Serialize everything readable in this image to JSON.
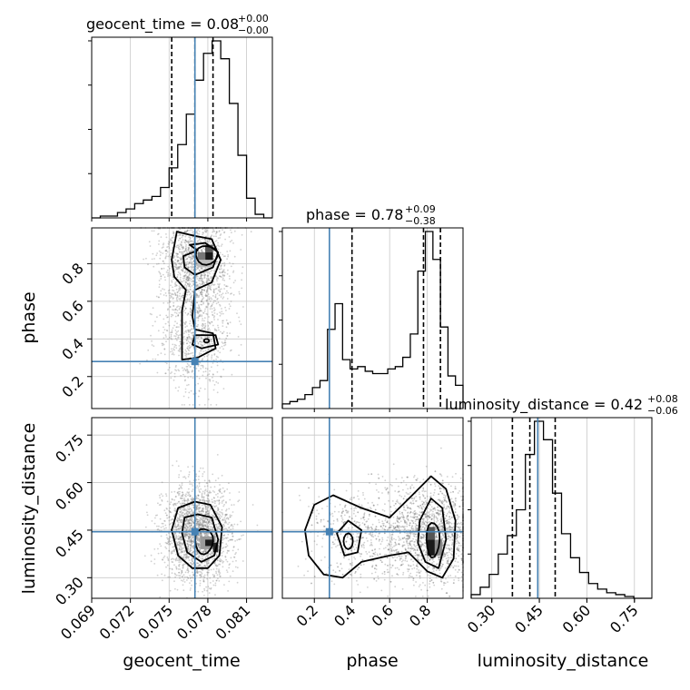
{
  "chart_data": {
    "type": "corner",
    "parameters": [
      "geocent_time",
      "phase",
      "luminosity_distance"
    ],
    "truths": {
      "geocent_time": 0.077,
      "phase": 0.28,
      "luminosity_distance": 0.445
    },
    "colors": {
      "truth": "#4682b4",
      "hist": "#000000",
      "grid": "#c8c8c8",
      "scatter": "#7a7a7a"
    },
    "titles": {
      "geocent_time": {
        "text": "geocent_time = 0.08",
        "plus": "+0.00",
        "minus": "−0.00"
      },
      "phase": {
        "text": "phase = 0.78",
        "plus": "+0.09",
        "minus": "−0.38"
      },
      "luminosity_distance": {
        "text": "luminosity_distance = 0.42",
        "plus": "+0.08",
        "minus": "−0.06"
      }
    },
    "axes": {
      "geocent_time": {
        "range": [
          0.069,
          0.083
        ],
        "ticks": [
          0.069,
          0.072,
          0.075,
          0.078,
          0.081
        ],
        "tick_labels": [
          "0.069",
          "0.072",
          "0.075",
          "0.078",
          "0.081"
        ]
      },
      "phase": {
        "range": [
          0.03,
          0.99
        ],
        "ticks_x": [
          0.2,
          0.4,
          0.6,
          0.8
        ],
        "tick_labels_x": [
          "0.2",
          "0.4",
          "0.6",
          "0.8"
        ],
        "ticks_y": [
          0.2,
          0.4,
          0.6,
          0.8
        ],
        "tick_labels_y": [
          "0.2",
          "0.4",
          "0.6",
          "0.8"
        ]
      },
      "luminosity_distance": {
        "range": [
          0.235,
          0.805
        ],
        "ticks": [
          0.3,
          0.45,
          0.6,
          0.75
        ],
        "tick_labels": [
          "0.30",
          "0.45",
          "0.60",
          "0.75"
        ]
      }
    },
    "quantiles": {
      "geocent_time": [
        0.0752,
        0.077,
        0.0784
      ],
      "phase": [
        0.4,
        0.78,
        0.87
      ],
      "luminosity_distance": [
        0.365,
        0.42,
        0.5
      ]
    },
    "histograms": {
      "geocent_time": [
        0,
        1,
        1,
        3,
        5,
        8,
        10,
        12,
        17,
        28,
        41,
        58,
        77,
        92,
        99,
        89,
        64,
        35,
        11,
        2,
        0
      ],
      "phase": [
        2,
        3,
        4,
        6,
        9,
        12,
        34,
        45,
        21,
        17,
        18,
        16,
        15,
        15,
        17,
        18,
        22,
        32,
        59,
        76,
        64,
        35,
        14,
        10
      ],
      "luminosity_distance": [
        2,
        6,
        13,
        24,
        34,
        48,
        78,
        96,
        86,
        57,
        35,
        22,
        14,
        8,
        5,
        3,
        2,
        1,
        0,
        0
      ]
    }
  }
}
